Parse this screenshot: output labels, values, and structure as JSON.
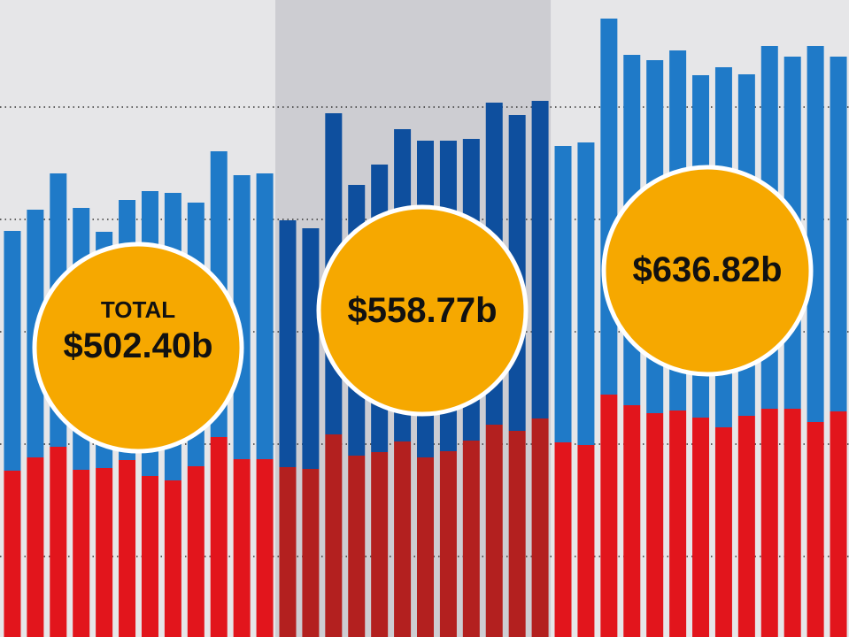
{
  "chart_data": {
    "type": "bar",
    "stacked": true,
    "title": "",
    "xlabel": "",
    "ylabel": "",
    "ylim": [
      0,
      720
    ],
    "grid": "dotted horizontal",
    "legend": "none",
    "series": [
      {
        "name": "red-segment",
        "values": [
          188,
          203,
          215,
          189,
          191,
          200,
          182,
          177,
          193,
          226,
          201,
          201,
          192,
          190,
          229,
          205,
          209,
          221,
          203,
          210,
          222,
          240,
          233,
          247,
          220,
          217,
          274,
          262,
          253,
          256,
          248,
          237,
          250,
          258,
          258,
          243,
          255
        ]
      },
      {
        "name": "blue-segment",
        "values": [
          271,
          280,
          309,
          296,
          267,
          294,
          322,
          325,
          298,
          323,
          321,
          323,
          279,
          272,
          363,
          306,
          325,
          353,
          358,
          351,
          341,
          364,
          357,
          359,
          335,
          342,
          425,
          396,
          399,
          407,
          387,
          407,
          386,
          410,
          398,
          425,
          401
        ]
      }
    ],
    "periods": [
      {
        "total_label": "TOTAL",
        "total_value": "$502.40b",
        "start_bar": 0,
        "end_bar": 11,
        "highlighted": false
      },
      {
        "total_label": "",
        "total_value": "$558.77b",
        "start_bar": 12,
        "end_bar": 23,
        "highlighted": true
      },
      {
        "total_label": "",
        "total_value": "$636.82b",
        "start_bar": 24,
        "end_bar": 36,
        "highlighted": false
      }
    ]
  },
  "colors": {
    "background": "#e6e6e8",
    "highlight_background": "#cdcdd2",
    "blue": "#1f7ac8",
    "blue_highlight": "#0e4f9e",
    "red": "#e2151c",
    "red_highlight": "#b3201f",
    "badge": "#f6a800",
    "badge_border": "#ffffff",
    "grid": "#333333"
  }
}
